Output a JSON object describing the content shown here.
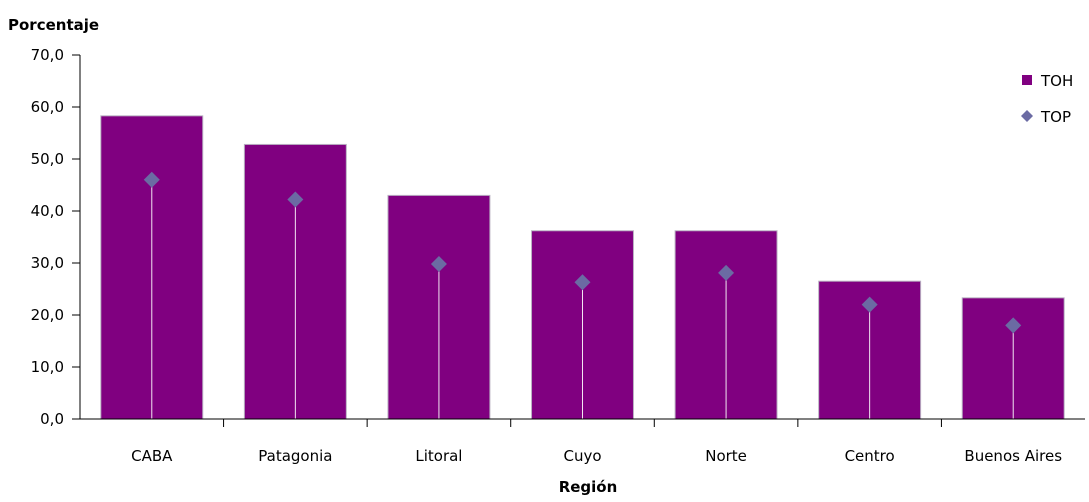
{
  "chart_data": {
    "type": "bar",
    "ylabel": "Porcentaje",
    "xlabel": "Región",
    "ylim": [
      0,
      70
    ],
    "y_ticks": [
      "0,0",
      "10,0",
      "20,0",
      "30,0",
      "40,0",
      "50,0",
      "60,0",
      "70,0"
    ],
    "categories": [
      "CABA",
      "Patagonia",
      "Litoral",
      "Cuyo",
      "Norte",
      "Centro",
      "Buenos Aires"
    ],
    "series": [
      {
        "name": "TOH",
        "kind": "bar",
        "color": "#800080",
        "values": [
          58.3,
          52.8,
          43.0,
          36.2,
          36.2,
          26.5,
          23.3
        ]
      },
      {
        "name": "TOP",
        "kind": "marker",
        "marker": "diamond",
        "color": "#6B6BA3",
        "values": [
          46.0,
          42.2,
          29.8,
          26.3,
          28.1,
          22.0,
          18.0
        ]
      }
    ],
    "legend_position": "top-right",
    "grid": false
  }
}
